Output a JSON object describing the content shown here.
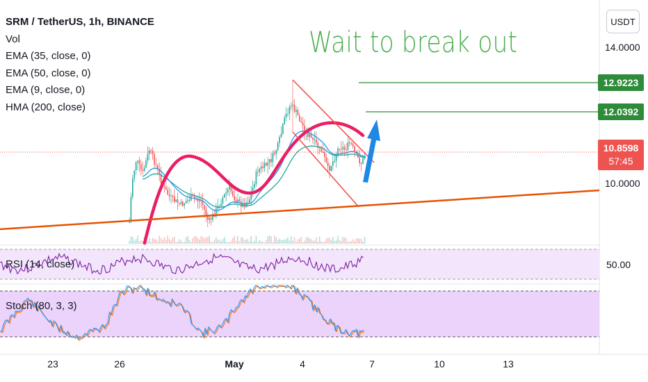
{
  "header": {
    "symbol_title": "SRM / TetherUS, 1h, BINANCE",
    "indicators": [
      "Vol",
      "EMA (35, close, 0)",
      "EMA (50, close, 0)",
      "EMA (9, close, 0)",
      "HMA (200, close)"
    ],
    "currency_button": "USDT"
  },
  "annotation": {
    "text": "Wait to break out",
    "color": "#4caf50"
  },
  "price_axis": {
    "tick_labels": [
      "14.0000",
      "10.0000"
    ],
    "levels": [
      {
        "price": "12.9223",
        "color": "#2e8b3a"
      },
      {
        "price": "12.0392",
        "color": "#2e8b3a"
      }
    ],
    "current": {
      "price": "10.8598",
      "countdown": "57:45",
      "color": "#ef5350"
    }
  },
  "rsi_pane": {
    "label": "RSI (14, close)",
    "axis_value": "50.00",
    "band_color": "#f3e5fc",
    "line_color": "#7b1fa2"
  },
  "stoch_pane": {
    "label": "Stoch (80, 3, 3)",
    "band_color": "#ebd3fb"
  },
  "time_axis": {
    "labels": [
      {
        "text": "23",
        "bold": false
      },
      {
        "text": "26",
        "bold": false
      },
      {
        "text": "May",
        "bold": true
      },
      {
        "text": "4",
        "bold": false
      },
      {
        "text": "7",
        "bold": false
      },
      {
        "text": "10",
        "bold": false
      },
      {
        "text": "13",
        "bold": false
      }
    ]
  },
  "colors": {
    "trendline": "#e65100",
    "hma": "#e91e63",
    "ema_fast": "#2196f3",
    "ema_slow": "#26a69a",
    "channel": "#ef5350",
    "arrow": "#1e88e5",
    "candle_up": "#26a69a",
    "candle_down": "#ef5350"
  }
}
